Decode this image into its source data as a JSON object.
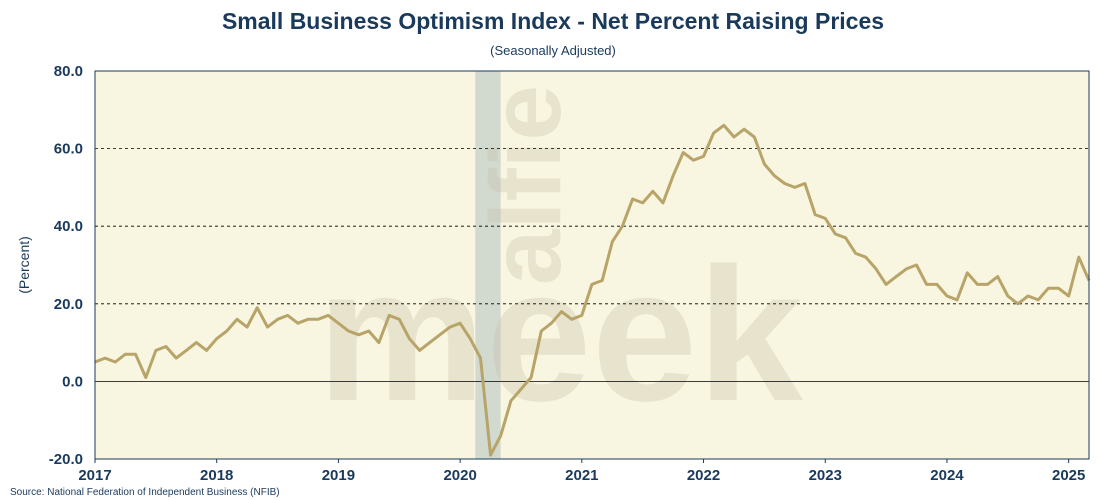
{
  "chart_data": {
    "type": "line",
    "title": "Small Business Optimism Index - Net Percent Raising Prices",
    "subtitle": "(Seasonally Adjusted)",
    "xlabel": "",
    "ylabel": "(Percent)",
    "source": "Source: National Federation of Independent Business (NFIB)",
    "watermark": [
      "alfie",
      "meek"
    ],
    "xlim": [
      2017.0,
      2025.167
    ],
    "ylim": [
      -20,
      80
    ],
    "x_ticks": [
      "2017",
      "2018",
      "2019",
      "2020",
      "2021",
      "2022",
      "2023",
      "2024",
      "2025"
    ],
    "y_ticks": [
      "80.0",
      "60.0",
      "40.0",
      "20.0",
      "0.0",
      "-20.0"
    ],
    "grid": "horizontal dashed",
    "recession_shading": [
      2020.125,
      2020.333
    ],
    "colors": {
      "line": "#b8a468",
      "plot_background": "#f8f5e1",
      "recession": "#b9c7c3",
      "text": "#1a3a5c"
    },
    "series": [
      {
        "x": [
          2017.0,
          2017.083,
          2017.167,
          2017.25,
          2017.333,
          2017.417,
          2017.5,
          2017.583,
          2017.667,
          2017.75,
          2017.833,
          2017.917,
          2018.0,
          2018.083,
          2018.167,
          2018.25,
          2018.333,
          2018.417,
          2018.5,
          2018.583,
          2018.667,
          2018.75,
          2018.833,
          2018.917,
          2019.0,
          2019.083,
          2019.167,
          2019.25,
          2019.333,
          2019.417,
          2019.5,
          2019.583,
          2019.667,
          2019.75,
          2019.833,
          2019.917,
          2020.0,
          2020.083,
          2020.167,
          2020.25,
          2020.333,
          2020.417,
          2020.5,
          2020.583,
          2020.667,
          2020.75,
          2020.833,
          2020.917,
          2021.0,
          2021.083,
          2021.167,
          2021.25,
          2021.333,
          2021.417,
          2021.5,
          2021.583,
          2021.667,
          2021.75,
          2021.833,
          2021.917,
          2022.0,
          2022.083,
          2022.167,
          2022.25,
          2022.333,
          2022.417,
          2022.5,
          2022.583,
          2022.667,
          2022.75,
          2022.833,
          2022.917,
          2023.0,
          2023.083,
          2023.167,
          2023.25,
          2023.333,
          2023.417,
          2023.5,
          2023.583,
          2023.667,
          2023.75,
          2023.833,
          2023.917,
          2024.0,
          2024.083,
          2024.167,
          2024.25,
          2024.333,
          2024.417,
          2024.5,
          2024.583,
          2024.667,
          2024.75,
          2024.833,
          2024.917,
          2025.0,
          2025.083,
          2025.167
        ],
        "y": [
          5,
          6,
          5,
          7,
          7,
          1,
          8,
          9,
          6,
          8,
          10,
          8,
          11,
          13,
          16,
          14,
          19,
          14,
          16,
          17,
          15,
          16,
          16,
          17,
          15,
          13,
          12,
          13,
          10,
          17,
          16,
          11,
          8,
          10,
          12,
          14,
          15,
          11,
          6,
          -19,
          -14,
          -5,
          -2,
          1,
          13,
          15,
          18,
          16,
          17,
          25,
          26,
          36,
          40,
          47,
          46,
          49,
          46,
          53,
          59,
          57,
          58,
          64,
          66,
          63,
          65,
          63,
          56,
          53,
          51,
          50,
          51,
          43,
          42,
          38,
          37,
          33,
          32,
          29,
          25,
          27,
          29,
          30,
          25,
          25,
          22,
          21,
          28,
          25,
          25,
          27,
          22,
          20,
          22,
          21,
          24,
          24,
          22,
          32,
          26
        ]
      }
    ]
  }
}
